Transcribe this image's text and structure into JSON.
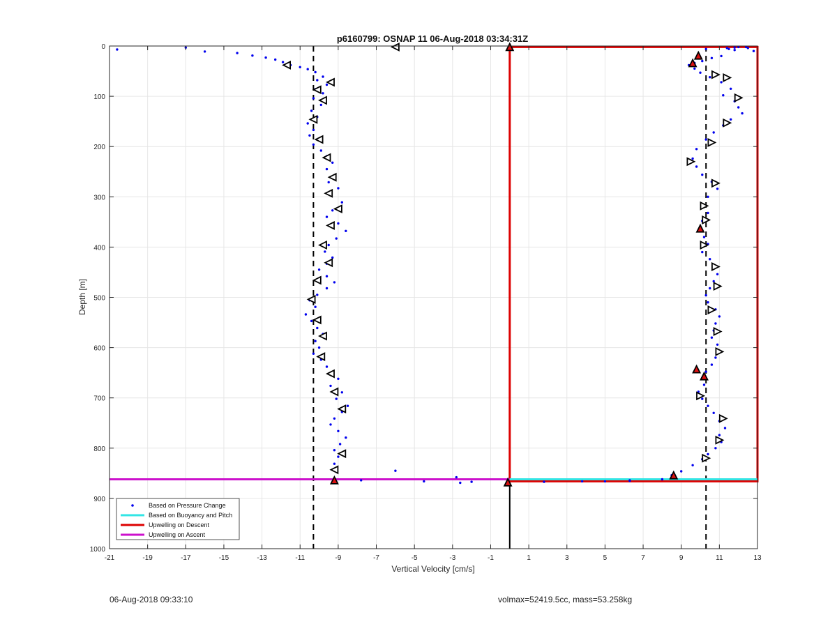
{
  "footer": {
    "left": "06-Aug-2018 09:33:10",
    "right": "volmax=52419.5cc, mass=53.258kg"
  },
  "chart_data": {
    "type": "scatter",
    "title": "p6160799: OSNAP 11 06-Aug-2018 03:34:31Z",
    "xlabel": "Vertical Velocity [cm/s]",
    "ylabel": "Depth [m]",
    "xlim": [
      -21,
      13
    ],
    "ylim": [
      1000,
      0
    ],
    "y_reversed": true,
    "grid": true,
    "xticks": [
      "-21",
      "-19",
      "-17",
      "-15",
      "-13",
      "-11",
      "-9",
      "-7",
      "-5",
      "-3",
      "-1",
      "1",
      "3",
      "5",
      "7",
      "9",
      "11",
      "13"
    ],
    "yticks": [
      "0",
      "100",
      "200",
      "300",
      "400",
      "500",
      "600",
      "700",
      "800",
      "900",
      "1000"
    ],
    "legend": {
      "placement": "bottom-left",
      "entries": [
        {
          "label": "Based on Pressure Change",
          "color": "#0000ee",
          "style": "dot"
        },
        {
          "label": "Based on Buoyancy and Pitch",
          "color": "#33e5e5",
          "style": "line"
        },
        {
          "label": "Upwelling on Descent",
          "color": "#dd0000",
          "style": "line"
        },
        {
          "label": "Upwelling on Ascent",
          "color": "#cc11cc",
          "style": "line"
        }
      ]
    },
    "reference_lines": [
      {
        "axis": "x",
        "value": -10.3,
        "style": "dashed",
        "color": "#000000"
      },
      {
        "axis": "x",
        "value": 10.3,
        "style": "dashed",
        "color": "#000000"
      },
      {
        "axis": "x",
        "value": 0,
        "style": "solid",
        "color": "#000000"
      }
    ],
    "series": [
      {
        "name": "Upwelling on Descent",
        "color": "#dd0000",
        "x": [
          0,
          13,
          13,
          0,
          0
        ],
        "y": [
          2,
          2,
          866,
          866,
          2
        ],
        "style": "line"
      },
      {
        "name": "Upwelling on Ascent",
        "color": "#cc11cc",
        "x": [
          -21,
          0
        ],
        "y": [
          862,
          862
        ],
        "style": "line"
      },
      {
        "name": "Based on Buoyancy and Pitch",
        "color": "#33e5e5",
        "x": [
          0,
          13
        ],
        "y": [
          862,
          862
        ],
        "style": "line"
      },
      {
        "name": "Based on Pressure Change",
        "color": "#0000ee",
        "style": "dot",
        "x": [
          -20.6,
          -17.0,
          -16.0,
          -14.3,
          -13.5,
          -12.8,
          -12.3,
          -11.9,
          -11.5,
          -11.0,
          -10.6,
          -10.2,
          -9.8,
          -10.1,
          -9.6,
          -10.2,
          -9.8,
          -10.3,
          -9.9,
          -10.4,
          -10.1,
          -10.6,
          -10.3,
          -10.5,
          -10.1,
          -10.3,
          -9.9,
          -9.6,
          -9.3,
          -9.6,
          -9.2,
          -9.5,
          -9.0,
          -9.4,
          -8.8,
          -9.3,
          -9.6,
          -9.0,
          -8.6,
          -9.1,
          -9.5,
          -9.7,
          -9.3,
          -9.6,
          -10.0,
          -9.6,
          -9.2,
          -9.6,
          -10.1,
          -10.5,
          -10.2,
          -10.7,
          -10.4,
          -10.1,
          -9.8,
          -10.2,
          -10.0,
          -10.3,
          -9.9,
          -9.6,
          -9.3,
          -9.0,
          -9.4,
          -8.8,
          -9.1,
          -8.5,
          -8.8,
          -9.2,
          -9.4,
          -9.0,
          -8.6,
          -8.9,
          -9.2,
          -9.0,
          -9.2,
          -6.0,
          -2.8,
          -7.8,
          -4.5,
          -2.6,
          -2.0,
          -0.1,
          10.3,
          11.4,
          11.8,
          12.4,
          11.1,
          10.6,
          10.1,
          9.7,
          9.4,
          9.7,
          10.0,
          10.5,
          11.1,
          11.6,
          11.2,
          11.8,
          12.0,
          12.2,
          11.6,
          11.2,
          10.7,
          10.3,
          9.8,
          9.6,
          9.8,
          10.1,
          10.6,
          10.9,
          10.4,
          10.2,
          10.4,
          10.1,
          10.0,
          10.2,
          10.4,
          10.1,
          10.5,
          10.8,
          10.9,
          10.7,
          10.5,
          10.3,
          10.4,
          10.8,
          11.0,
          10.8,
          10.7,
          10.6,
          10.9,
          11.1,
          10.8,
          10.6,
          10.3,
          10.1,
          10.2,
          9.9,
          10.1,
          10.4,
          10.7,
          11.0,
          11.3,
          11.0,
          11.1,
          10.8,
          10.4,
          10.1,
          9.6,
          9.0,
          8.5,
          8.0,
          6.3,
          3.8,
          1.8,
          5.0,
          6.3,
          11.5,
          12.5,
          12.0,
          11.8,
          12.8
        ],
        "y": [
          7,
          3,
          11,
          14,
          19,
          23,
          27,
          32,
          38,
          42,
          46,
          52,
          61,
          68,
          77,
          86,
          94,
          104,
          117,
          129,
          141,
          154,
          167,
          178,
          186,
          196,
          208,
          219,
          232,
          245,
          257,
          271,
          283,
          292,
          311,
          327,
          340,
          353,
          368,
          383,
          396,
          409,
          421,
          433,
          445,
          458,
          470,
          482,
          495,
          506,
          519,
          534,
          547,
          561,
          573,
          587,
          600,
          612,
          624,
          638,
          650,
          662,
          676,
          689,
          702,
          716,
          728,
          741,
          753,
          766,
          779,
          792,
          804,
          817,
          831,
          845,
          858,
          864,
          866,
          869,
          867,
          869,
          6,
          4,
          3,
          2,
          20,
          24,
          30,
          34,
          38,
          45,
          53,
          62,
          72,
          85,
          98,
          110,
          122,
          134,
          146,
          158,
          172,
          186,
          205,
          224,
          240,
          256,
          270,
          284,
          300,
          316,
          332,
          348,
          364,
          380,
          394,
          410,
          424,
          438,
          454,
          468,
          482,
          496,
          510,
          524,
          538,
          552,
          566,
          580,
          594,
          608,
          620,
          634,
          648,
          660,
          674,
          688,
          702,
          716,
          730,
          746,
          760,
          774,
          788,
          800,
          812,
          822,
          834,
          846,
          854,
          862,
          864,
          866,
          867,
          866,
          865,
          6,
          4,
          2,
          8,
          10
        ]
      }
    ],
    "markers": {
      "descent": [
        {
          "x": -11.7,
          "y": 38
        },
        {
          "x": -9.4,
          "y": 72
        },
        {
          "x": -10.1,
          "y": 87
        },
        {
          "x": -9.8,
          "y": 108
        },
        {
          "x": -10.3,
          "y": 146
        },
        {
          "x": -10.0,
          "y": 186
        },
        {
          "x": -9.6,
          "y": 222
        },
        {
          "x": -9.3,
          "y": 261
        },
        {
          "x": -9.5,
          "y": 293
        },
        {
          "x": -9.0,
          "y": 324
        },
        {
          "x": -9.4,
          "y": 357
        },
        {
          "x": -9.8,
          "y": 396
        },
        {
          "x": -9.5,
          "y": 431
        },
        {
          "x": -10.1,
          "y": 466
        },
        {
          "x": -10.4,
          "y": 504
        },
        {
          "x": -10.1,
          "y": 545
        },
        {
          "x": -9.8,
          "y": 577
        },
        {
          "x": -9.9,
          "y": 618
        },
        {
          "x": -9.4,
          "y": 652
        },
        {
          "x": -9.2,
          "y": 688
        },
        {
          "x": -8.8,
          "y": 722
        },
        {
          "x": -8.8,
          "y": 811
        },
        {
          "x": -9.2,
          "y": 843
        },
        {
          "x": -6.0,
          "y": 2
        }
      ],
      "ascent": [
        {
          "x": 11.4,
          "y": 63
        },
        {
          "x": 10.8,
          "y": 57
        },
        {
          "x": 12.0,
          "y": 103
        },
        {
          "x": 11.4,
          "y": 153
        },
        {
          "x": 10.6,
          "y": 192
        },
        {
          "x": 9.5,
          "y": 230
        },
        {
          "x": 10.8,
          "y": 273
        },
        {
          "x": 10.2,
          "y": 318
        },
        {
          "x": 10.3,
          "y": 346
        },
        {
          "x": 10.2,
          "y": 396
        },
        {
          "x": 10.8,
          "y": 439
        },
        {
          "x": 10.9,
          "y": 478
        },
        {
          "x": 10.6,
          "y": 525
        },
        {
          "x": 10.9,
          "y": 568
        },
        {
          "x": 11.0,
          "y": 608
        },
        {
          "x": 10.0,
          "y": 696
        },
        {
          "x": 11.2,
          "y": 741
        },
        {
          "x": 11.0,
          "y": 784
        },
        {
          "x": 10.3,
          "y": 820
        }
      ],
      "red": [
        {
          "x": 9.6,
          "y": 34
        },
        {
          "x": 9.9,
          "y": 19
        },
        {
          "x": 10.0,
          "y": 363
        },
        {
          "x": 9.8,
          "y": 643
        },
        {
          "x": 10.2,
          "y": 657
        },
        {
          "x": 8.6,
          "y": 854
        },
        {
          "x": -9.2,
          "y": 864
        },
        {
          "x": -0.1,
          "y": 868
        },
        {
          "x": 0.0,
          "y": 2
        }
      ]
    }
  }
}
